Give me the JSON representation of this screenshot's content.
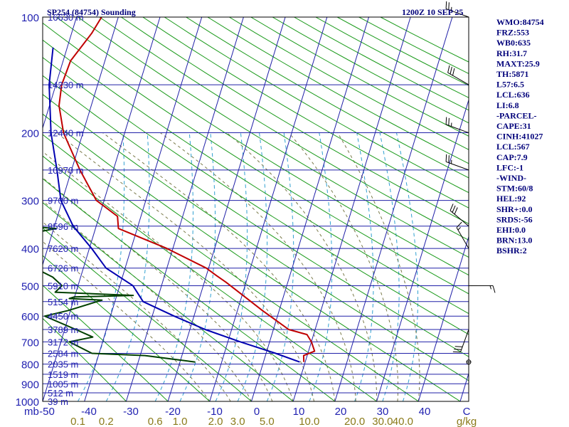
{
  "chart_data": {
    "type": "line",
    "title": "SP254 (84754) Sounding",
    "valid_time": "1200Z 10 SEP 25",
    "pressure_axis": {
      "unit_label": "mb",
      "ticks": [
        100,
        200,
        300,
        400,
        500,
        600,
        700,
        800,
        900,
        1000
      ],
      "range": [
        100,
        1000
      ],
      "scale": "log"
    },
    "height_levels": [
      {
        "p": 100,
        "label": "16630 m"
      },
      {
        "p": 150,
        "label": "14230 m"
      },
      {
        "p": 200,
        "label": "12440 m"
      },
      {
        "p": 250,
        "label": "10970 m"
      },
      {
        "p": 300,
        "label": "9700 m"
      },
      {
        "p": 350,
        "label": "8596 m"
      },
      {
        "p": 400,
        "label": "7620 m"
      },
      {
        "p": 450,
        "label": "6726 m"
      },
      {
        "p": 500,
        "label": "5910 m"
      },
      {
        "p": 550,
        "label": "5154 m"
      },
      {
        "p": 600,
        "label": "4450 m"
      },
      {
        "p": 650,
        "label": "3789 m"
      },
      {
        "p": 700,
        "label": "3172 m"
      },
      {
        "p": 750,
        "label": "2584 m"
      },
      {
        "p": 800,
        "label": "2035 m"
      },
      {
        "p": 850,
        "label": "1519 m"
      },
      {
        "p": 900,
        "label": "1005 m"
      },
      {
        "p": 950,
        "label": "512 m"
      },
      {
        "p": 1000,
        "label": "39 m"
      }
    ],
    "temperature_ticks": [
      "-50",
      "-40",
      "-30",
      "-20",
      "-10",
      "0",
      "10",
      "20",
      "30",
      "40",
      "C"
    ],
    "mixing_ratio_ticks": [
      "0.1",
      "0.2",
      "0.6",
      "1.0",
      "2.0",
      "3.0",
      "5.0",
      "10.0",
      "20.0",
      "30.0",
      "40.0",
      "g/kg"
    ],
    "series": [
      {
        "name": "Temperature",
        "color": "#c00000",
        "points": [
          [
            100,
            -64
          ],
          [
            110,
            -66
          ],
          [
            130,
            -70.5
          ],
          [
            150,
            -72
          ],
          [
            170,
            -72
          ],
          [
            200,
            -70
          ],
          [
            250,
            -64.5
          ],
          [
            300,
            -59
          ],
          [
            330,
            -53
          ],
          [
            355,
            -52
          ],
          [
            400,
            -39
          ],
          [
            450,
            -28
          ],
          [
            470,
            -25
          ],
          [
            490,
            -22
          ],
          [
            520,
            -18
          ],
          [
            580,
            -10.5
          ],
          [
            650,
            -2
          ],
          [
            670,
            3
          ],
          [
            700,
            5
          ],
          [
            740,
            7
          ],
          [
            760,
            5
          ],
          [
            790,
            6
          ]
        ]
      },
      {
        "name": "Dew Point",
        "color": "#004000",
        "points": [
          [
            100,
            -89
          ],
          [
            130,
            -88
          ],
          [
            150,
            -89
          ],
          [
            200,
            -93
          ],
          [
            250,
            -98
          ],
          [
            280,
            -104
          ],
          [
            300,
            -105
          ],
          [
            330,
            -103.5
          ],
          [
            355,
            -67
          ],
          [
            370,
            -75
          ],
          [
            400,
            -78
          ],
          [
            450,
            -75
          ],
          [
            460,
            -67
          ],
          [
            475,
            -64
          ],
          [
            500,
            -61
          ],
          [
            520,
            -62
          ],
          [
            530,
            -43
          ],
          [
            535,
            -57
          ],
          [
            540,
            -58
          ],
          [
            545,
            -50
          ],
          [
            580,
            -57
          ],
          [
            600,
            -62
          ],
          [
            650,
            -53
          ],
          [
            680,
            -48
          ],
          [
            700,
            -53
          ],
          [
            750,
            -46
          ],
          [
            760,
            -33
          ],
          [
            790,
            -20
          ]
        ]
      },
      {
        "name": "Parcel",
        "color": "#0000b0",
        "points": [
          [
            120,
            -75
          ],
          [
            150,
            -75
          ],
          [
            200,
            -73
          ],
          [
            250,
            -70
          ],
          [
            300,
            -67.5
          ],
          [
            350,
            -63
          ],
          [
            400,
            -57
          ],
          [
            450,
            -52
          ],
          [
            500,
            -44
          ],
          [
            550,
            -40
          ],
          [
            600,
            -31
          ],
          [
            650,
            -22
          ],
          [
            700,
            -12
          ],
          [
            750,
            -2
          ],
          [
            790,
            5
          ]
        ]
      }
    ],
    "wind_barbs": [
      {
        "p": 100,
        "dir": 290,
        "spd": 25
      },
      {
        "p": 150,
        "dir": 300,
        "spd": 30
      },
      {
        "p": 200,
        "dir": 290,
        "spd": 25
      },
      {
        "p": 250,
        "dir": 290,
        "spd": 25
      },
      {
        "p": 350,
        "dir": 310,
        "spd": 30
      },
      {
        "p": 400,
        "dir": 330,
        "spd": 15
      },
      {
        "p": 500,
        "dir": 90,
        "spd": 15
      },
      {
        "p": 650,
        "dir": 200,
        "spd": 30
      },
      {
        "p": 790,
        "dir": 0,
        "spd": 0
      }
    ],
    "indices": [
      "WMO:84754",
      "FRZ:553",
      "WB0:635",
      "RH:31.7",
      "MAXT:25.9",
      "TH:5871",
      "L57:6.5",
      "LCL:636",
      "LI:6.8",
      "-PARCEL-",
      "CAPE:31",
      "CINH:41027",
      "LCL:567",
      "CAP:7.9",
      "LFC:-1",
      "-WIND-",
      "STM:60/8",
      "HEL:92",
      "SHR+:0.0",
      "SRDS:-56",
      "EHI:0.0",
      "BRN:13.0",
      "BSHR:2"
    ]
  }
}
